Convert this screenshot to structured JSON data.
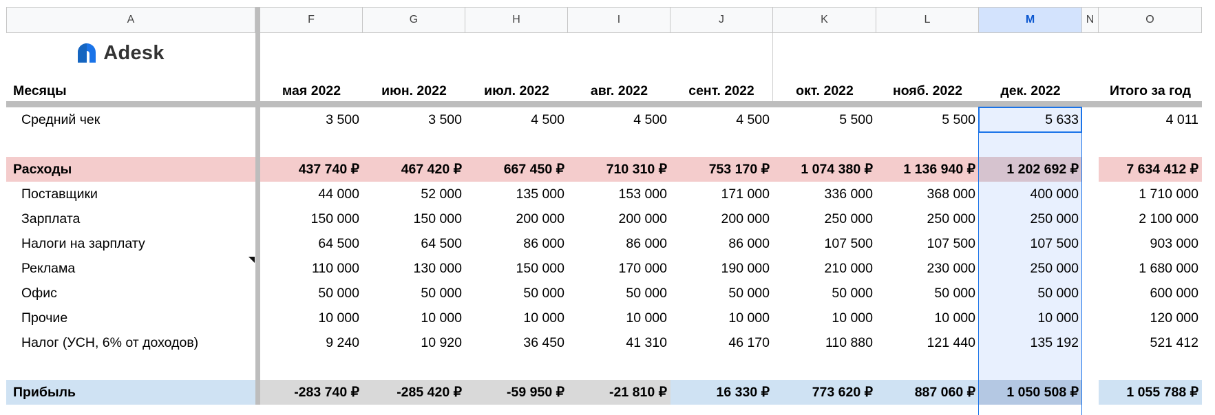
{
  "columns": [
    "A",
    "F",
    "G",
    "H",
    "I",
    "J",
    "K",
    "L",
    "M",
    "N",
    "O"
  ],
  "selected_column": "M",
  "logo": {
    "text": "Adesk",
    "icon": "adesk-logo-icon",
    "color": "#1a73e8"
  },
  "header_row": {
    "label": "Месяцы",
    "months": [
      "мая 2022",
      "июн. 2022",
      "июл. 2022",
      "авг. 2022",
      "сент. 2022",
      "окт. 2022",
      "нояб. 2022",
      "дек. 2022"
    ],
    "total": "Итого за год"
  },
  "avg_check": {
    "label": "Средний чек",
    "values": [
      "3 500",
      "3 500",
      "4 500",
      "4 500",
      "4 500",
      "5 500",
      "5 500",
      "5 633"
    ],
    "total": "4 011"
  },
  "expenses": {
    "label": "Расходы",
    "values": [
      "437 740 ₽",
      "467 420 ₽",
      "667 450 ₽",
      "710 310 ₽",
      "753 170 ₽",
      "1 074 380 ₽",
      "1 136 940 ₽",
      "1 202 692 ₽"
    ],
    "total": "7 634 412 ₽"
  },
  "expense_rows": [
    {
      "label": "Поставщики",
      "values": [
        "44 000",
        "52 000",
        "135 000",
        "153 000",
        "171 000",
        "336 000",
        "368 000",
        "400 000"
      ],
      "total": "1 710 000"
    },
    {
      "label": "Зарплата",
      "values": [
        "150 000",
        "150 000",
        "200 000",
        "200 000",
        "200 000",
        "250 000",
        "250 000",
        "250 000"
      ],
      "total": "2 100 000"
    },
    {
      "label": "Налоги на зарплату",
      "values": [
        "64 500",
        "64 500",
        "86 000",
        "86 000",
        "86 000",
        "107 500",
        "107 500",
        "107 500"
      ],
      "total": "903 000"
    },
    {
      "label": "Реклама",
      "values": [
        "110 000",
        "130 000",
        "150 000",
        "170 000",
        "190 000",
        "210 000",
        "230 000",
        "250 000"
      ],
      "total": "1 680 000"
    },
    {
      "label": "Офис",
      "values": [
        "50 000",
        "50 000",
        "50 000",
        "50 000",
        "50 000",
        "50 000",
        "50 000",
        "50 000"
      ],
      "total": "600 000"
    },
    {
      "label": "Прочие",
      "values": [
        "10 000",
        "10 000",
        "10 000",
        "10 000",
        "10 000",
        "10 000",
        "10 000",
        "10 000"
      ],
      "total": "120 000"
    },
    {
      "label": "Налог (УСН, 6% от доходов)",
      "values": [
        "9 240",
        "10 920",
        "36 450",
        "41 310",
        "46 170",
        "110 880",
        "121 440",
        "135 192"
      ],
      "total": "521 412"
    }
  ],
  "profit": {
    "label": "Прибыль",
    "values": [
      "-283 740 ₽",
      "-285 420 ₽",
      "-59 950 ₽",
      "-21 810 ₽",
      "16 330 ₽",
      "773 620 ₽",
      "887 060 ₽",
      "1 050 508 ₽"
    ],
    "total": "1 055 788 ₽"
  },
  "colors": {
    "expenses_bg": "#f4cccc",
    "profit_negative_bg": "#d9d9d9",
    "profit_positive_bg": "#cfe2f3",
    "selection": "#1a73e8"
  }
}
